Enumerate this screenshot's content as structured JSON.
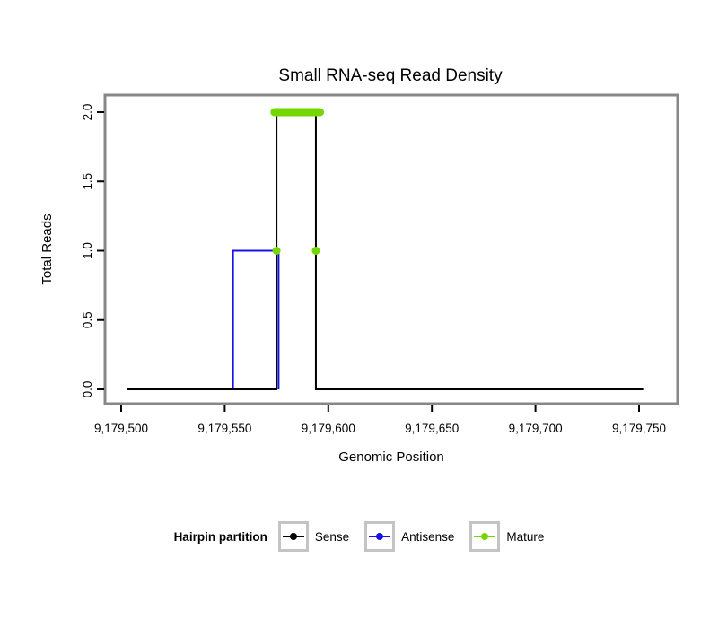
{
  "chart_data": {
    "type": "line",
    "title": "Small RNA-seq Read Density",
    "xlabel": "Genomic Position",
    "ylabel": "Total Reads",
    "xlim": [
      9179500,
      9179750
    ],
    "ylim": [
      0.0,
      2.0
    ],
    "grid": false,
    "panel_border_color": "#878787",
    "x_ticks": [
      {
        "value": 9179500,
        "label": "9,179,500"
      },
      {
        "value": 9179550,
        "label": "9,179,550"
      },
      {
        "value": 9179600,
        "label": "9,179,600"
      },
      {
        "value": 9179650,
        "label": "9,179,650"
      },
      {
        "value": 9179700,
        "label": "9,179,700"
      },
      {
        "value": 9179750,
        "label": "9,179,750"
      }
    ],
    "y_ticks": [
      {
        "value": 0.0,
        "label": "0.0"
      },
      {
        "value": 0.5,
        "label": "0.5"
      },
      {
        "value": 1.0,
        "label": "1.0"
      },
      {
        "value": 1.5,
        "label": "1.5"
      },
      {
        "value": 2.0,
        "label": "2.0"
      }
    ],
    "series": [
      {
        "name": "Antisense",
        "type": "step-line",
        "color": "#1414e6",
        "points": [
          [
            9179554,
            0
          ],
          [
            9179554,
            1
          ],
          [
            9179576,
            1
          ],
          [
            9179576,
            0
          ]
        ]
      },
      {
        "name": "Sense",
        "type": "step-line",
        "color": "#000000",
        "points": [
          [
            9179503,
            0
          ],
          [
            9179575,
            0
          ],
          [
            9179575,
            2
          ],
          [
            9179594,
            2
          ],
          [
            9179594,
            0
          ],
          [
            9179752,
            0
          ]
        ]
      },
      {
        "name": "Mature",
        "type": "segment-points",
        "color": "#76d700",
        "segment": {
          "x1": 9179574,
          "x2": 9179596,
          "y": 2.0,
          "width": 9
        },
        "points": [
          [
            9179575,
            1
          ],
          [
            9179594,
            1
          ]
        ]
      }
    ],
    "legend": {
      "title": "Hairpin partition",
      "position": "bottom",
      "entries": [
        {
          "label": "Sense",
          "color": "#000000"
        },
        {
          "label": "Antisense",
          "color": "#1414e6"
        },
        {
          "label": "Mature",
          "color": "#76d700"
        }
      ]
    }
  }
}
